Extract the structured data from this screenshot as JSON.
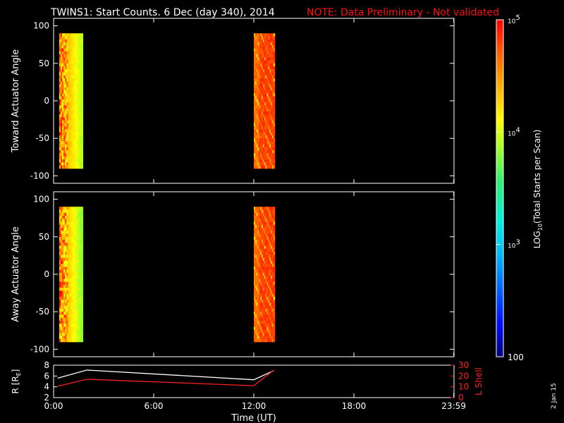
{
  "title": {
    "main": "TWINS1: Start Counts.  6 Dec (day 340), 2014",
    "note": "NOTE: Data Preliminary - Not validated"
  },
  "colors": {
    "background": "#000000",
    "axes": "#ffffff",
    "note": "#ff1010",
    "r_line": "#ffffff",
    "l_line": "#ff2020"
  },
  "footer_date": "2 Jan 15",
  "chart_data": [
    {
      "type": "heatmap",
      "ylabel": "Toward Actuator Angle",
      "ylim": [
        -110,
        110
      ],
      "yticks": [
        100,
        50,
        0,
        -50,
        -100
      ],
      "x_time_range": [
        "0:00",
        "23:59"
      ],
      "data_blocks": [
        {
          "start": "0:20",
          "end": "1:45",
          "y_range": [
            -90,
            90
          ],
          "dominant_log10_counts": [
            3.9,
            4.7
          ]
        },
        {
          "start": "12:00",
          "end": "13:15",
          "y_range": [
            -90,
            90
          ],
          "dominant_log10_counts": [
            4.3,
            4.9
          ]
        }
      ]
    },
    {
      "type": "heatmap",
      "ylabel": "Away Actuator Angle",
      "ylim": [
        -110,
        110
      ],
      "yticks": [
        100,
        50,
        0,
        -50,
        -100
      ],
      "x_time_range": [
        "0:00",
        "23:59"
      ],
      "data_blocks": [
        {
          "start": "0:20",
          "end": "1:45",
          "y_range": [
            -90,
            90
          ],
          "dominant_log10_counts": [
            3.8,
            4.7
          ]
        },
        {
          "start": "12:00",
          "end": "13:15",
          "y_range": [
            -90,
            90
          ],
          "dominant_log10_counts": [
            4.3,
            4.9
          ]
        }
      ]
    },
    {
      "type": "line",
      "ylabel_left": "R [R",
      "ylabel_left_sub": "E",
      "ylabel_left_end": "]",
      "ylabel_right": "L Shell",
      "y_left_lim": [
        2,
        8
      ],
      "y_left_ticks": [
        8,
        6,
        4,
        2
      ],
      "y_right_lim": [
        0,
        30
      ],
      "y_right_ticks": [
        30,
        20,
        10,
        0
      ],
      "xlabel": "Time (UT)",
      "xtick_labels": [
        "0:00",
        "6:00",
        "12:00",
        "18:00",
        "23:59"
      ],
      "xtick_hours": [
        0,
        6,
        12,
        18,
        23.983
      ],
      "series": [
        {
          "axis": "left",
          "color": "#ffffff",
          "points": [
            [
              0.25,
              5.6
            ],
            [
              2.0,
              7.1
            ],
            [
              12.0,
              5.3
            ],
            [
              13.2,
              7.0
            ]
          ]
        },
        {
          "axis": "right",
          "color": "#ff2020",
          "points": [
            [
              0.25,
              10.5
            ],
            [
              2.0,
              17.0
            ],
            [
              12.0,
              11.0
            ],
            [
              13.2,
              25.5
            ]
          ]
        }
      ]
    },
    {
      "type": "colorbar",
      "label_prefix": "LOG",
      "label_sub": "10",
      "label_suffix": "(Total Starts per Scan)",
      "scale": "log",
      "range": [
        100,
        100000
      ],
      "tick_labels": [
        {
          "value": 100000,
          "base": "10",
          "exp": "5"
        },
        {
          "value": 10000,
          "base": "10",
          "exp": "4"
        },
        {
          "value": 1000,
          "base": "10",
          "exp": "3"
        },
        {
          "value": 100,
          "text": "100"
        }
      ]
    }
  ]
}
